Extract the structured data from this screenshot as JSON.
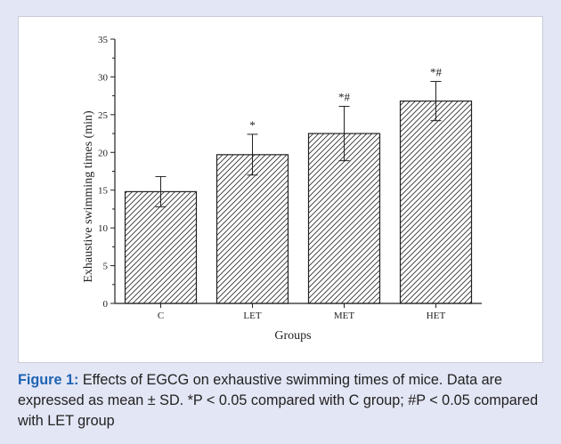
{
  "chart_data": {
    "type": "bar",
    "categories": [
      "C",
      "LET",
      "MET",
      "HET"
    ],
    "values": [
      14.8,
      19.7,
      22.5,
      26.8
    ],
    "errors": [
      2.0,
      2.7,
      3.6,
      2.6
    ],
    "annotations": [
      "",
      "*",
      "*#",
      "*#"
    ],
    "xlabel": "Groups",
    "ylabel": "Exhaustive swimming times (min)",
    "ylim": [
      0,
      35
    ],
    "yticks": [
      0,
      5,
      10,
      15,
      20,
      25,
      30,
      35
    ],
    "bar_fill": "diagonal-hatch",
    "grid": false,
    "legend": "none"
  },
  "caption": {
    "label": "Figure 1:",
    "text": " Effects of EGCG on exhaustive swimming times of mice. Data are expressed as mean ± SD. *P < 0.05 compared with C group; #P < 0.05 compared with LET group"
  },
  "colors": {
    "background": "#e3e6f4",
    "panel": "#ffffff",
    "caption_label": "#1f63b4",
    "bar_stroke": "#222222"
  }
}
